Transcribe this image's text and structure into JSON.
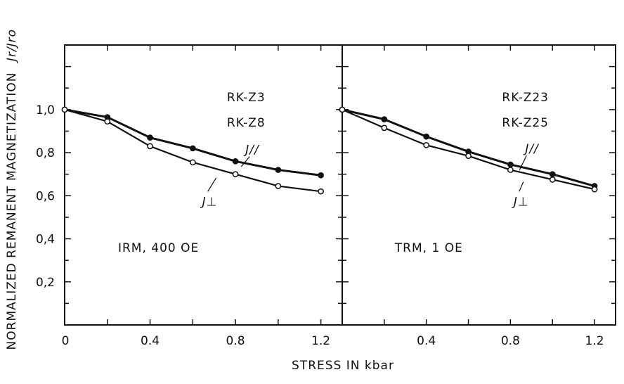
{
  "chart_data": {
    "type": "line",
    "ylabel": "NORMALIZED REMANENT MAGNETIZATION",
    "ylabel_symbol": "Jr/Jro",
    "xlabel": "STRESS IN kbar",
    "ylim": [
      0.0,
      1.3
    ],
    "y_ticks": [
      "0,2",
      "0,4",
      "0,6",
      "0,8",
      "1,0"
    ],
    "y_zero_label": "0",
    "panels": [
      {
        "id": "left",
        "samples": [
          "RK-Z3",
          "RK-Z8"
        ],
        "condition": "IRM, 400 OE",
        "xlim": [
          0.0,
          1.3
        ],
        "x_ticks": [
          "0.4",
          "0.8",
          "1.2"
        ],
        "series": [
          {
            "name": "J//",
            "marker": "filled",
            "x": [
              0.0,
              0.2,
              0.4,
              0.6,
              0.8,
              1.0,
              1.2
            ],
            "y": [
              1.0,
              0.965,
              0.87,
              0.82,
              0.76,
              0.72,
              0.695
            ]
          },
          {
            "name": "J⊥",
            "marker": "open",
            "x": [
              0.0,
              0.2,
              0.4,
              0.6,
              0.8,
              1.0,
              1.2
            ],
            "y": [
              1.0,
              0.945,
              0.83,
              0.755,
              0.7,
              0.645,
              0.62
            ]
          }
        ]
      },
      {
        "id": "right",
        "samples": [
          "RK-Z23",
          "RK-Z25"
        ],
        "condition": "TRM, 1 OE",
        "xlim": [
          0.0,
          1.3
        ],
        "x_ticks": [
          "0.4",
          "0.8",
          "1.2"
        ],
        "series": [
          {
            "name": "J//",
            "marker": "filled",
            "x": [
              0.0,
              0.2,
              0.4,
              0.6,
              0.8,
              1.0,
              1.2
            ],
            "y": [
              1.0,
              0.955,
              0.875,
              0.805,
              0.745,
              0.7,
              0.645
            ]
          },
          {
            "name": "J⊥",
            "marker": "open",
            "x": [
              0.0,
              0.2,
              0.4,
              0.6,
              0.8,
              1.0,
              1.2
            ],
            "y": [
              1.0,
              0.915,
              0.835,
              0.785,
              0.72,
              0.675,
              0.63
            ]
          }
        ]
      }
    ]
  }
}
